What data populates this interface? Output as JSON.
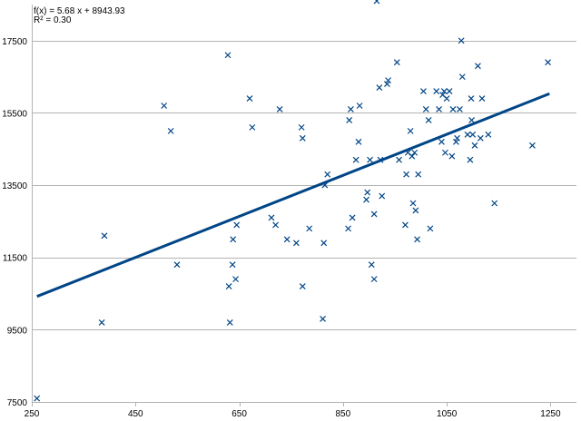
{
  "chart_data": {
    "type": "scatter",
    "title": "",
    "xlabel": "",
    "ylabel": "",
    "xlim": [
      250,
      1300
    ],
    "ylim": [
      7500,
      18500
    ],
    "x_ticks": [
      250,
      450,
      650,
      850,
      1050,
      1250
    ],
    "y_ticks": [
      7500,
      9500,
      11500,
      13500,
      15500,
      17500
    ],
    "grid": true,
    "marker": "x",
    "marker_color": "#004586",
    "trendline": {
      "equation": "f(x) = 5.68 x + 8943.93",
      "r_squared": "R² = 0.30",
      "slope": 5.68,
      "intercept": 8943.93,
      "x_start": 260,
      "x_end": 1248,
      "color": "#004586"
    },
    "points": [
      [
        260,
        7600
      ],
      [
        385,
        9700
      ],
      [
        390,
        12100
      ],
      [
        505,
        15700
      ],
      [
        518,
        15000
      ],
      [
        530,
        11300
      ],
      [
        628,
        17100
      ],
      [
        630,
        10700
      ],
      [
        632,
        9700
      ],
      [
        637,
        11300
      ],
      [
        638,
        12000
      ],
      [
        643,
        10900
      ],
      [
        645,
        12400
      ],
      [
        670,
        15900
      ],
      [
        675,
        15100
      ],
      [
        712,
        12600
      ],
      [
        720,
        12400
      ],
      [
        728,
        15600
      ],
      [
        742,
        12000
      ],
      [
        760,
        11900
      ],
      [
        770,
        15100
      ],
      [
        772,
        14800
      ],
      [
        772,
        10700
      ],
      [
        785,
        12300
      ],
      [
        811,
        9800
      ],
      [
        813,
        11900
      ],
      [
        815,
        13500
      ],
      [
        820,
        13800
      ],
      [
        860,
        12300
      ],
      [
        862,
        15300
      ],
      [
        865,
        15600
      ],
      [
        868,
        12600
      ],
      [
        875,
        14200
      ],
      [
        880,
        14700
      ],
      [
        882,
        15700
      ],
      [
        895,
        13100
      ],
      [
        897,
        13300
      ],
      [
        902,
        14200
      ],
      [
        905,
        11300
      ],
      [
        910,
        12700
      ],
      [
        910,
        10900
      ],
      [
        915,
        18600
      ],
      [
        920,
        16200
      ],
      [
        922,
        14200
      ],
      [
        925,
        13200
      ],
      [
        935,
        16300
      ],
      [
        937,
        16400
      ],
      [
        954,
        16900
      ],
      [
        958,
        14200
      ],
      [
        970,
        12400
      ],
      [
        972,
        13800
      ],
      [
        975,
        14400
      ],
      [
        980,
        15000
      ],
      [
        983,
        14300
      ],
      [
        985,
        13000
      ],
      [
        988,
        14400
      ],
      [
        990,
        12800
      ],
      [
        993,
        12000
      ],
      [
        995,
        13800
      ],
      [
        1005,
        16100
      ],
      [
        1010,
        15600
      ],
      [
        1015,
        15300
      ],
      [
        1018,
        12300
      ],
      [
        1030,
        16100
      ],
      [
        1035,
        15600
      ],
      [
        1040,
        14700
      ],
      [
        1042,
        16000
      ],
      [
        1045,
        16100
      ],
      [
        1047,
        14400
      ],
      [
        1050,
        15900
      ],
      [
        1055,
        16100
      ],
      [
        1060,
        14300
      ],
      [
        1062,
        15600
      ],
      [
        1068,
        14700
      ],
      [
        1070,
        14800
      ],
      [
        1075,
        15600
      ],
      [
        1078,
        17500
      ],
      [
        1080,
        16500
      ],
      [
        1090,
        14900
      ],
      [
        1095,
        14200
      ],
      [
        1097,
        15900
      ],
      [
        1098,
        15300
      ],
      [
        1100,
        14900
      ],
      [
        1104,
        14600
      ],
      [
        1110,
        16800
      ],
      [
        1115,
        14800
      ],
      [
        1118,
        15900
      ],
      [
        1130,
        14900
      ],
      [
        1142,
        13000
      ],
      [
        1215,
        14600
      ],
      [
        1245,
        16900
      ]
    ]
  }
}
